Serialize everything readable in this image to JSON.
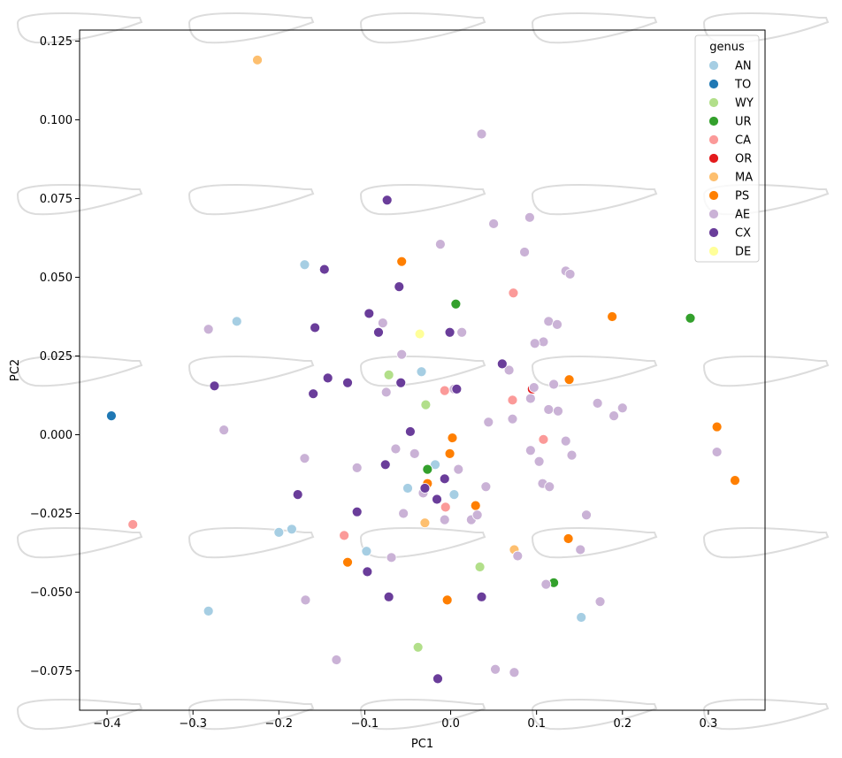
{
  "chart_data": {
    "type": "scatter",
    "xlabel": "PC1",
    "ylabel": "PC2",
    "xlim": [
      -0.432,
      0.366
    ],
    "ylim": [
      -0.0875,
      0.1285
    ],
    "xticks": [
      "−0.4",
      "−0.3",
      "−0.2",
      "−0.1",
      "0.0",
      "0.1",
      "0.2",
      "0.3"
    ],
    "xtick_values": [
      -0.4,
      -0.3,
      -0.2,
      -0.1,
      0.0,
      0.1,
      0.2,
      0.3
    ],
    "yticks": [
      "−0.075",
      "−0.050",
      "−0.025",
      "0.000",
      "0.025",
      "0.050",
      "0.075",
      "0.100",
      "0.125"
    ],
    "ytick_values": [
      -0.075,
      -0.05,
      -0.025,
      0.0,
      0.025,
      0.05,
      0.075,
      0.1,
      0.125
    ],
    "grid": false,
    "legend": {
      "title": "genus",
      "placement": "top-right"
    },
    "background_shapes": "leaf-outline",
    "series": [
      {
        "name": "AN",
        "color": "#a6cee3",
        "points": [
          [
            -0.17,
            0.054
          ],
          [
            -0.249,
            0.036
          ],
          [
            -0.034,
            0.02
          ],
          [
            -0.05,
            -0.017
          ],
          [
            -0.018,
            -0.0095
          ],
          [
            0.004,
            -0.019
          ],
          [
            -0.2,
            -0.031
          ],
          [
            -0.185,
            -0.03
          ],
          [
            -0.098,
            -0.037
          ],
          [
            -0.282,
            -0.056
          ],
          [
            0.152,
            -0.058
          ]
        ]
      },
      {
        "name": "TO",
        "color": "#1f78b4",
        "points": [
          [
            -0.395,
            0.006
          ]
        ]
      },
      {
        "name": "WY",
        "color": "#b2df8a",
        "points": [
          [
            -0.072,
            0.019
          ],
          [
            -0.029,
            0.0095
          ],
          [
            0.034,
            -0.042
          ],
          [
            -0.038,
            -0.0675
          ]
        ]
      },
      {
        "name": "UR",
        "color": "#33a02c",
        "points": [
          [
            0.006,
            0.0415
          ],
          [
            0.279,
            0.037
          ],
          [
            -0.027,
            -0.011
          ],
          [
            0.12,
            -0.047
          ]
        ]
      },
      {
        "name": "CA",
        "color": "#fb9a99",
        "points": [
          [
            0.073,
            0.045
          ],
          [
            -0.007,
            0.014
          ],
          [
            0.072,
            0.011
          ],
          [
            0.108,
            -0.0015
          ],
          [
            -0.006,
            -0.023
          ],
          [
            -0.124,
            -0.032
          ],
          [
            -0.37,
            -0.0285
          ]
        ]
      },
      {
        "name": "OR",
        "color": "#e31a1c",
        "points": [
          [
            0.095,
            0.0145
          ]
        ]
      },
      {
        "name": "MA",
        "color": "#fdbf6f",
        "points": [
          [
            -0.225,
            0.119
          ],
          [
            -0.03,
            -0.028
          ],
          [
            0.074,
            -0.0365
          ]
        ]
      },
      {
        "name": "PS",
        "color": "#ff7f00",
        "points": [
          [
            -0.057,
            0.055
          ],
          [
            0.188,
            0.0375
          ],
          [
            0.138,
            0.0175
          ],
          [
            0.31,
            0.0025
          ],
          [
            0.331,
            -0.0145
          ],
          [
            0.002,
            -0.001
          ],
          [
            -0.001,
            -0.006
          ],
          [
            -0.027,
            -0.0155
          ],
          [
            0.029,
            -0.0225
          ],
          [
            0.137,
            -0.033
          ],
          [
            -0.12,
            -0.0405
          ],
          [
            -0.004,
            -0.0525
          ]
        ]
      },
      {
        "name": "AE",
        "color": "#cab2d6",
        "points": [
          [
            0.036,
            0.0955
          ],
          [
            0.05,
            0.067
          ],
          [
            0.092,
            0.069
          ],
          [
            -0.012,
            0.0605
          ],
          [
            0.086,
            0.058
          ],
          [
            0.134,
            0.052
          ],
          [
            0.139,
            0.051
          ],
          [
            0.114,
            0.036
          ],
          [
            0.124,
            0.035
          ],
          [
            0.108,
            0.0295
          ],
          [
            0.098,
            0.029
          ],
          [
            -0.282,
            0.0335
          ],
          [
            -0.079,
            0.0355
          ],
          [
            0.013,
            0.0325
          ],
          [
            -0.057,
            0.0255
          ],
          [
            0.068,
            0.0205
          ],
          [
            0.097,
            0.015
          ],
          [
            0.12,
            0.016
          ],
          [
            0.004,
            0.0145
          ],
          [
            -0.075,
            0.0135
          ],
          [
            0.093,
            0.0115
          ],
          [
            0.171,
            0.01
          ],
          [
            0.2,
            0.0085
          ],
          [
            0.114,
            0.008
          ],
          [
            0.125,
            0.0075
          ],
          [
            0.19,
            0.006
          ],
          [
            0.072,
            0.005
          ],
          [
            0.044,
            0.004
          ],
          [
            -0.264,
            0.0015
          ],
          [
            0.134,
            -0.002
          ],
          [
            0.093,
            -0.005
          ],
          [
            0.141,
            -0.0065
          ],
          [
            0.103,
            -0.0085
          ],
          [
            -0.064,
            -0.0045
          ],
          [
            -0.042,
            -0.006
          ],
          [
            -0.17,
            -0.0075
          ],
          [
            -0.109,
            -0.0105
          ],
          [
            0.009,
            -0.011
          ],
          [
            0.107,
            -0.0155
          ],
          [
            0.115,
            -0.0165
          ],
          [
            0.041,
            -0.0165
          ],
          [
            -0.032,
            -0.0185
          ],
          [
            -0.055,
            -0.025
          ],
          [
            -0.007,
            -0.027
          ],
          [
            0.024,
            -0.027
          ],
          [
            0.031,
            -0.0255
          ],
          [
            0.158,
            -0.0255
          ],
          [
            0.151,
            -0.0365
          ],
          [
            0.078,
            -0.0385
          ],
          [
            -0.069,
            -0.039
          ],
          [
            0.111,
            -0.0475
          ],
          [
            -0.169,
            -0.0525
          ],
          [
            0.174,
            -0.053
          ],
          [
            -0.133,
            -0.0715
          ],
          [
            0.052,
            -0.0745
          ],
          [
            0.074,
            -0.0755
          ],
          [
            0.31,
            -0.0055
          ]
        ]
      },
      {
        "name": "CX",
        "color": "#6a3d9a",
        "points": [
          [
            -0.074,
            0.0745
          ],
          [
            -0.147,
            0.0525
          ],
          [
            -0.06,
            0.047
          ],
          [
            -0.095,
            0.0385
          ],
          [
            -0.084,
            0.0325
          ],
          [
            -0.158,
            0.034
          ],
          [
            -0.001,
            0.0325
          ],
          [
            0.06,
            0.0225
          ],
          [
            -0.143,
            0.018
          ],
          [
            -0.12,
            0.0165
          ],
          [
            -0.058,
            0.0165
          ],
          [
            -0.275,
            0.0155
          ],
          [
            -0.16,
            0.013
          ],
          [
            0.007,
            0.0145
          ],
          [
            -0.047,
            0.001
          ],
          [
            -0.076,
            -0.0095
          ],
          [
            -0.007,
            -0.014
          ],
          [
            -0.03,
            -0.017
          ],
          [
            -0.016,
            -0.0205
          ],
          [
            -0.178,
            -0.019
          ],
          [
            -0.109,
            -0.0245
          ],
          [
            -0.097,
            -0.0435
          ],
          [
            -0.072,
            -0.0515
          ],
          [
            0.036,
            -0.0515
          ],
          [
            -0.015,
            -0.0775
          ]
        ]
      },
      {
        "name": "DE",
        "color": "#ffff99",
        "points": [
          [
            -0.036,
            0.032
          ]
        ]
      }
    ]
  }
}
